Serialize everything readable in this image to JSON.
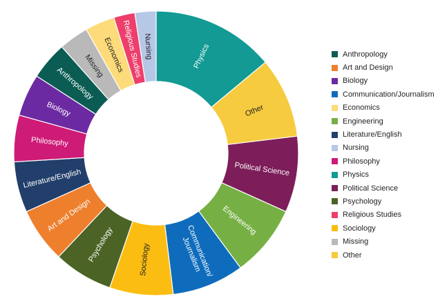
{
  "chart_data": {
    "type": "pie",
    "donut": true,
    "title": "",
    "legend_position": "right",
    "slices": [
      {
        "label": "Physics",
        "value": 14.5,
        "color": "#139a94"
      },
      {
        "label": "Other",
        "value": 9.5,
        "color": "#f7cb3f"
      },
      {
        "label": "Political Science",
        "value": 9.0,
        "color": "#7d1e5a"
      },
      {
        "label": "Engineering",
        "value": 8.5,
        "color": "#76b044"
      },
      {
        "label": "Communication/Journalism",
        "value": 8.5,
        "color": "#0f6cbc"
      },
      {
        "label": "Sociology",
        "value": 7.5,
        "color": "#fbbd12"
      },
      {
        "label": "Psychology",
        "value": 7.0,
        "color": "#4b6426"
      },
      {
        "label": "Art and Design",
        "value": 6.5,
        "color": "#ee7f2d"
      },
      {
        "label": "Literature/English",
        "value": 6.0,
        "color": "#223f6b"
      },
      {
        "label": "Philosophy",
        "value": 5.5,
        "color": "#ce1b77"
      },
      {
        "label": "Biology",
        "value": 5.0,
        "color": "#6c2aa2"
      },
      {
        "label": "Anthropology",
        "value": 4.5,
        "color": "#0b5d54"
      },
      {
        "label": "Missing",
        "value": 3.5,
        "color": "#b9b9b9"
      },
      {
        "label": "Economics",
        "value": 3.5,
        "color": "#fddb7a"
      },
      {
        "label": "Religious Studies",
        "value": 2.5,
        "color": "#ee3e6b"
      },
      {
        "label": "Nursing",
        "value": 2.5,
        "color": "#b7c7e6"
      }
    ]
  },
  "legend": {
    "items": [
      {
        "label": "Anthropology",
        "color": "#0b5d54"
      },
      {
        "label": "Art and Design",
        "color": "#ee7f2d"
      },
      {
        "label": "Biology",
        "color": "#6c2aa2"
      },
      {
        "label": "Communication/Journalism",
        "color": "#0f6cbc"
      },
      {
        "label": "Economics",
        "color": "#fddb7a"
      },
      {
        "label": "Engineering",
        "color": "#76b044"
      },
      {
        "label": "Literature/English",
        "color": "#223f6b"
      },
      {
        "label": "Nursing",
        "color": "#b7c7e6"
      },
      {
        "label": "Philosophy",
        "color": "#ce1b77"
      },
      {
        "label": "Physics",
        "color": "#139a94"
      },
      {
        "label": "Political Science",
        "color": "#7d1e5a"
      },
      {
        "label": "Psychology",
        "color": "#4b6426"
      },
      {
        "label": "Religious Studies",
        "color": "#ee3e6b"
      },
      {
        "label": "Sociology",
        "color": "#fbbd12"
      },
      {
        "label": "Missing",
        "color": "#b9b9b9"
      },
      {
        "label": "Other",
        "color": "#f7cb3f"
      }
    ]
  }
}
